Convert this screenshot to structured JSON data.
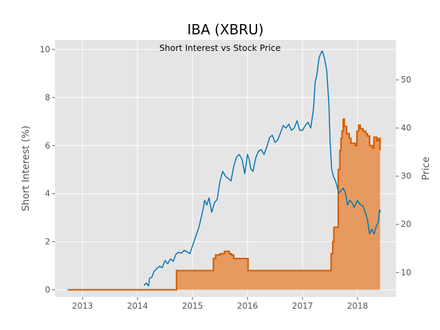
{
  "chart_data": {
    "type": "line",
    "title": "IBA (XBRU)",
    "subtitle": "Short Interest vs Stock Price",
    "ylabel_left": "Short Interest (%)",
    "ylabel_right": "Price",
    "xlim": [
      2012.5,
      2018.7
    ],
    "ylim_left": [
      -0.3,
      10.4
    ],
    "ylim_right": [
      4.9,
      58.3
    ],
    "x_ticks": [
      2013,
      2014,
      2015,
      2016,
      2017,
      2018
    ],
    "x_tick_labels": [
      "2013",
      "2014",
      "2015",
      "2016",
      "2017",
      "2018"
    ],
    "y_left_ticks": [
      0,
      2,
      4,
      6,
      8,
      10
    ],
    "y_left_tick_labels": [
      "0",
      "2",
      "4",
      "6",
      "8",
      "10"
    ],
    "y_right_ticks": [
      10,
      20,
      30,
      40,
      50
    ],
    "y_right_tick_labels": [
      "10",
      "20",
      "30",
      "40",
      "50"
    ],
    "grid": true,
    "colors": {
      "background": "#e5e5e5",
      "grid": "#ffffff",
      "short_interest": "#d55e00",
      "short_interest_fill": "#e69a5f",
      "price": "#0072b2"
    },
    "series": [
      {
        "axis": "left",
        "step": true,
        "filled": true,
        "x": [
          2012.73,
          2014.7,
          2014.71,
          2015.33,
          2015.38,
          2015.42,
          2015.5,
          2015.58,
          2015.67,
          2015.71,
          2015.75,
          2016.0,
          2016.01,
          2017.5,
          2017.52,
          2017.55,
          2017.57,
          2017.62,
          2017.65,
          2017.68,
          2017.7,
          2017.72,
          2017.74,
          2017.76,
          2017.8,
          2017.85,
          2017.88,
          2017.92,
          2017.96,
          2017.99,
          2018.02,
          2018.05,
          2018.1,
          2018.15,
          2018.18,
          2018.22,
          2018.27,
          2018.3,
          2018.35,
          2018.38,
          2018.41
        ],
        "values": [
          0,
          0,
          0.8,
          0.8,
          1.3,
          1.45,
          1.5,
          1.6,
          1.5,
          1.45,
          1.3,
          1.3,
          0.8,
          0.8,
          1.5,
          2.0,
          2.6,
          2.6,
          5.0,
          5.8,
          6.3,
          6.6,
          7.1,
          6.8,
          6.5,
          6.3,
          6.1,
          6.1,
          6.0,
          6.6,
          6.85,
          6.7,
          6.6,
          6.5,
          6.4,
          6.0,
          5.9,
          6.35,
          6.2,
          6.3,
          5.8
        ]
      },
      {
        "axis": "right",
        "step": false,
        "filled": false,
        "x": [
          2014.12,
          2014.16,
          2014.2,
          2014.22,
          2014.26,
          2014.3,
          2014.35,
          2014.4,
          2014.45,
          2014.5,
          2014.55,
          2014.6,
          2014.65,
          2014.7,
          2014.75,
          2014.8,
          2014.85,
          2014.9,
          2014.95,
          2015.0,
          2015.05,
          2015.08,
          2015.12,
          2015.16,
          2015.2,
          2015.22,
          2015.26,
          2015.3,
          2015.35,
          2015.4,
          2015.45,
          2015.5,
          2015.55,
          2015.6,
          2015.65,
          2015.7,
          2015.75,
          2015.8,
          2015.85,
          2015.9,
          2015.95,
          2016.0,
          2016.03,
          2016.06,
          2016.1,
          2016.15,
          2016.2,
          2016.25,
          2016.3,
          2016.35,
          2016.4,
          2016.45,
          2016.5,
          2016.55,
          2016.6,
          2016.65,
          2016.7,
          2016.75,
          2016.8,
          2016.85,
          2016.9,
          2016.95,
          2017.0,
          2017.05,
          2017.1,
          2017.15,
          2017.2,
          2017.23,
          2017.26,
          2017.3,
          2017.33,
          2017.36,
          2017.4,
          2017.44,
          2017.48,
          2017.5,
          2017.53,
          2017.56,
          2017.6,
          2017.63,
          2017.66,
          2017.7,
          2017.74,
          2017.78,
          2017.82,
          2017.86,
          2017.9,
          2017.94,
          2017.98,
          2018.0,
          2018.02,
          2018.06,
          2018.1,
          2018.14,
          2018.18,
          2018.22,
          2018.26,
          2018.3,
          2018.34,
          2018.38,
          2018.4,
          2018.42
        ],
        "values": [
          7.3,
          7.8,
          7.2,
          8.8,
          9.0,
          10.2,
          10.8,
          11.3,
          11.0,
          12.5,
          11.8,
          12.8,
          12.3,
          13.8,
          14.2,
          14.0,
          14.6,
          14.3,
          13.9,
          15.5,
          17.2,
          18.2,
          19.5,
          21.5,
          23.5,
          25.0,
          24.0,
          25.5,
          22.5,
          24.5,
          25.2,
          29.0,
          31.0,
          30.0,
          29.5,
          29.0,
          32.0,
          34.0,
          34.5,
          33.5,
          30.5,
          34.5,
          33.5,
          31.5,
          31.0,
          33.8,
          35.2,
          35.5,
          34.5,
          36.0,
          38.0,
          38.5,
          37.0,
          37.5,
          39.0,
          40.5,
          40.0,
          40.8,
          39.5,
          40.0,
          41.5,
          39.5,
          39.5,
          40.5,
          41.2,
          40.0,
          44.0,
          49.5,
          51.0,
          54.5,
          55.5,
          56.0,
          54.5,
          52.0,
          45.0,
          37.5,
          31.5,
          30.0,
          29.0,
          27.8,
          26.5,
          27.0,
          27.5,
          26.5,
          24.0,
          25.0,
          24.5,
          23.5,
          24.5,
          25.0,
          24.5,
          24.0,
          23.8,
          22.5,
          21.0,
          18.0,
          19.0,
          18.0,
          19.5,
          20.5,
          23.0,
          22.5
        ]
      }
    ]
  }
}
